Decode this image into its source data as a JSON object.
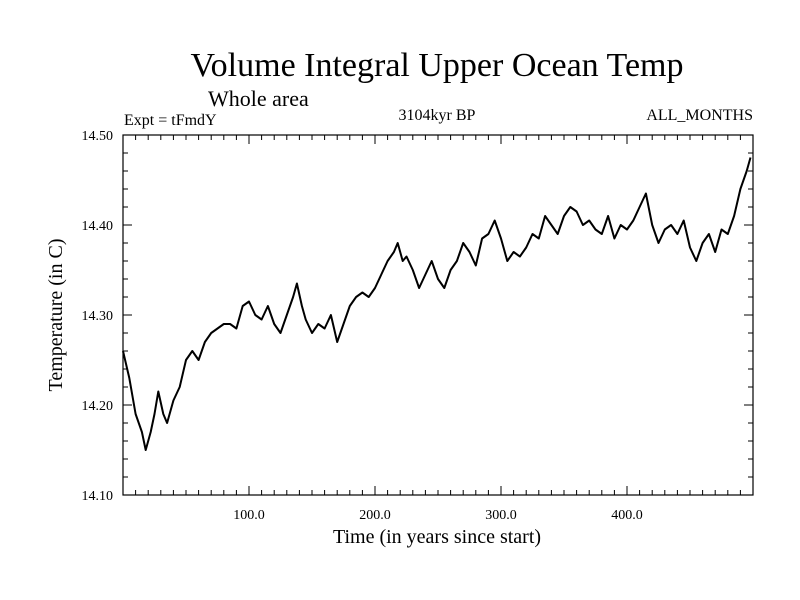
{
  "chart_data": {
    "type": "line",
    "title": "Volume Integral Upper Ocean Temp",
    "subtitle": "Whole area",
    "expt_label": "Expt = tFmdY",
    "period_label": "3104kyr BP",
    "months_label": "ALL_MONTHS",
    "xlabel": "Time (in years since start)",
    "ylabel": "Temperature (in C)",
    "xlim": [
      0,
      500
    ],
    "ylim": [
      14.1,
      14.5
    ],
    "x_ticks": [
      "100.0",
      "200.0",
      "300.0",
      "400.0"
    ],
    "y_ticks": [
      "14.10",
      "14.20",
      "14.30",
      "14.40",
      "14.50"
    ],
    "colors": {
      "line": "#000000",
      "frame": "#000000",
      "background": "#ffffff"
    },
    "series": [
      {
        "name": "Volume integral upper ocean temperature",
        "x": [
          0,
          5,
          10,
          15,
          18,
          22,
          25,
          28,
          32,
          35,
          40,
          45,
          50,
          55,
          60,
          65,
          70,
          75,
          80,
          85,
          90,
          95,
          100,
          105,
          110,
          115,
          120,
          125,
          130,
          135,
          138,
          142,
          145,
          150,
          155,
          160,
          165,
          170,
          175,
          180,
          185,
          190,
          195,
          200,
          205,
          210,
          215,
          218,
          222,
          225,
          230,
          235,
          240,
          245,
          250,
          255,
          260,
          265,
          270,
          275,
          280,
          285,
          290,
          295,
          300,
          305,
          310,
          315,
          320,
          325,
          330,
          335,
          340,
          345,
          350,
          355,
          360,
          365,
          370,
          375,
          380,
          385,
          390,
          395,
          400,
          405,
          410,
          415,
          420,
          425,
          430,
          435,
          440,
          445,
          450,
          455,
          460,
          465,
          470,
          475,
          480,
          485,
          490,
          495,
          498
        ],
        "y": [
          14.26,
          14.23,
          14.19,
          14.17,
          14.15,
          14.17,
          14.19,
          14.215,
          14.19,
          14.18,
          14.205,
          14.22,
          14.25,
          14.26,
          14.25,
          14.27,
          14.28,
          14.285,
          14.29,
          14.29,
          14.285,
          14.31,
          14.315,
          14.3,
          14.295,
          14.31,
          14.29,
          14.28,
          14.3,
          14.32,
          14.335,
          14.31,
          14.295,
          14.28,
          14.29,
          14.285,
          14.3,
          14.27,
          14.29,
          14.31,
          14.32,
          14.325,
          14.32,
          14.33,
          14.345,
          14.36,
          14.37,
          14.38,
          14.36,
          14.365,
          14.35,
          14.33,
          14.345,
          14.36,
          14.34,
          14.33,
          14.35,
          14.36,
          14.38,
          14.37,
          14.355,
          14.385,
          14.39,
          14.405,
          14.385,
          14.36,
          14.37,
          14.365,
          14.375,
          14.39,
          14.385,
          14.41,
          14.4,
          14.39,
          14.41,
          14.42,
          14.415,
          14.4,
          14.405,
          14.395,
          14.39,
          14.41,
          14.385,
          14.4,
          14.395,
          14.405,
          14.42,
          14.435,
          14.4,
          14.38,
          14.395,
          14.4,
          14.39,
          14.405,
          14.375,
          14.36,
          14.38,
          14.39,
          14.37,
          14.395,
          14.39,
          14.41,
          14.44,
          14.46,
          14.475
        ]
      }
    ]
  }
}
